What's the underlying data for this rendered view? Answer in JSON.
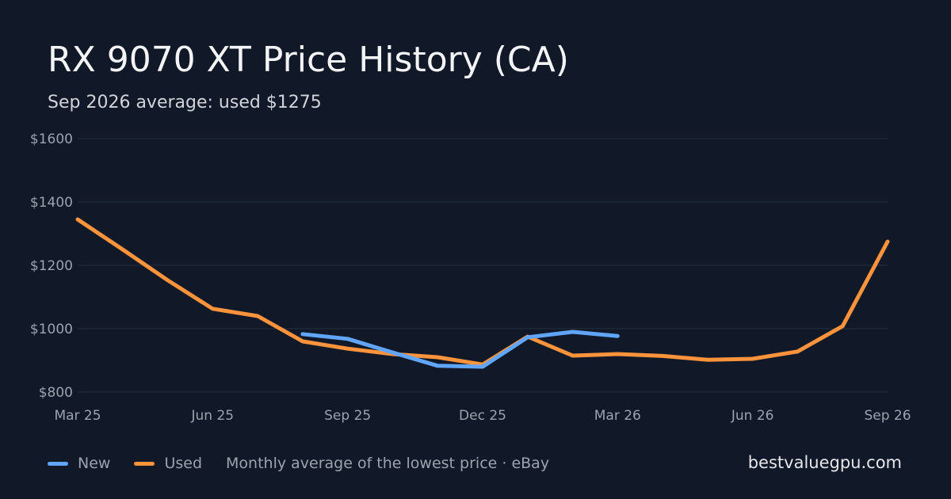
{
  "header": {
    "title": "RX 9070 XT Price History (CA)",
    "subtitle": "Sep 2026 average: used $1275"
  },
  "legend": {
    "items": [
      {
        "label": "New",
        "color": "#60a5fa"
      },
      {
        "label": "Used",
        "color": "#fb923c"
      }
    ],
    "note": "Monthly average of the lowest price · eBay"
  },
  "footer": {
    "site": "bestvaluegpu.com"
  },
  "colors": {
    "background": "#111827",
    "grid": "#1f2937",
    "tick_text": "#9ca3af",
    "new": "#60a5fa",
    "used": "#fb923c"
  },
  "chart_data": {
    "type": "line",
    "title": "RX 9070 XT Price History (CA)",
    "subtitle": "Sep 2026 average: used $1275",
    "xlabel": "",
    "ylabel": "",
    "x": [
      "2025-03",
      "2025-04",
      "2025-05",
      "2025-06",
      "2025-07",
      "2025-08",
      "2025-09",
      "2025-10",
      "2025-11",
      "2025-12",
      "2026-01",
      "2026-02",
      "2026-03",
      "2026-04",
      "2026-05",
      "2026-06",
      "2026-07",
      "2026-08",
      "2026-09"
    ],
    "x_ticks": [
      "Mar 25",
      "Jun 25",
      "Sep 25",
      "Dec 25",
      "Mar 26",
      "Jun 26",
      "Sep 26"
    ],
    "x_tick_values": [
      "2025-03",
      "2025-06",
      "2025-09",
      "2025-12",
      "2026-03",
      "2026-06",
      "2026-09"
    ],
    "y_ticks": [
      "$1600",
      "$1400",
      "$1200",
      "$1000",
      "$800"
    ],
    "y_tick_values": [
      1600,
      1400,
      1200,
      1000,
      800
    ],
    "ylim": [
      800,
      1600
    ],
    "grid": true,
    "legend_position": "bottom-left",
    "series": [
      {
        "name": "New",
        "color": "#60a5fa",
        "values": [
          null,
          null,
          null,
          null,
          null,
          983,
          968,
          925,
          883,
          880,
          973,
          990,
          977,
          null,
          null,
          null,
          null,
          null,
          null
        ]
      },
      {
        "name": "Used",
        "color": "#fb923c",
        "values": [
          1345,
          1250,
          1153,
          1063,
          1040,
          960,
          937,
          920,
          910,
          887,
          975,
          915,
          920,
          914,
          902,
          905,
          928,
          1008,
          1275
        ]
      }
    ]
  }
}
